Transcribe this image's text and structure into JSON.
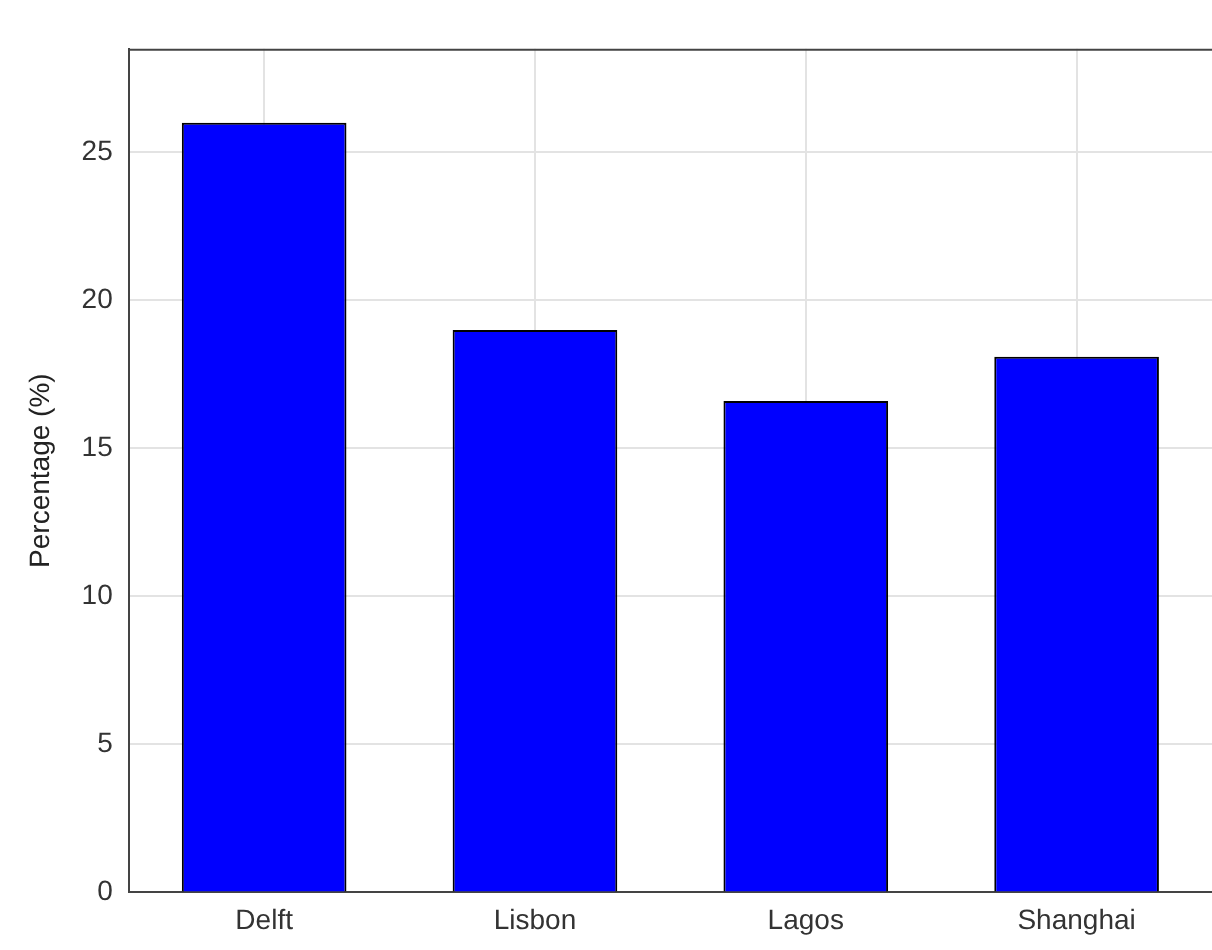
{
  "chart_data": {
    "type": "bar",
    "ylabel": "Percentage (%)",
    "categories": [
      "Delft",
      "Lisbon",
      "Lagos",
      "Shanghai"
    ],
    "values": [
      26.0,
      19.0,
      16.6,
      18.1
    ],
    "color": "#0000ff",
    "ylim": [
      0,
      28.5
    ],
    "yticks": [
      0,
      5,
      10,
      15,
      20,
      25
    ],
    "grid": true,
    "legend": false
  }
}
